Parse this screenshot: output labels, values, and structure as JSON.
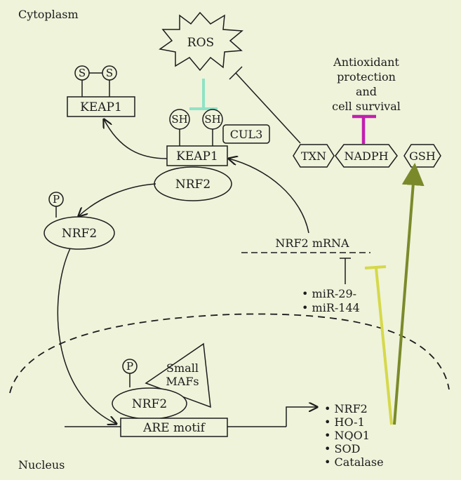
{
  "regions": {
    "cytoplasm": "Cytoplasm",
    "nucleus": "Nucleus"
  },
  "nodes": {
    "ros": "ROS",
    "s_left": "S",
    "s_right": "S",
    "keap1_oxidized": "KEAP1",
    "sh_left": "SH",
    "sh_right": "SH",
    "cul3": "CUL3",
    "keap1_bound": "KEAP1",
    "nrf2_bound": "NRF2",
    "p_cyto": "P",
    "nrf2_phos": "NRF2",
    "txn": "TXN",
    "nadph": "NADPH",
    "gsh": "GSH",
    "antioxidant_line1": "Antioxidant",
    "antioxidant_line2": "protection",
    "antioxidant_line3": "and",
    "antioxidant_line4": "cell survival",
    "nrf2_mrna": "NRF2 mRNA",
    "mir_29": "miR-29-",
    "mir_144": "miR-144",
    "p_nuc": "P",
    "nrf2_nuc": "NRF2",
    "small_mafs_line1": "Small",
    "small_mafs_line2": "MAFs",
    "are_motif": "ARE motif"
  },
  "target_genes": [
    "NRF2",
    "HO-1",
    "NQO1",
    "SOD",
    "Catalase"
  ],
  "colors": {
    "background": "#eef3da",
    "ros_inhibitor": "#8fe3c6",
    "nadph_inhibitor": "#c21fb0",
    "gsh_inhibitor_mir": "#d6d84a",
    "gsh_arrow": "#7a8a2a"
  }
}
